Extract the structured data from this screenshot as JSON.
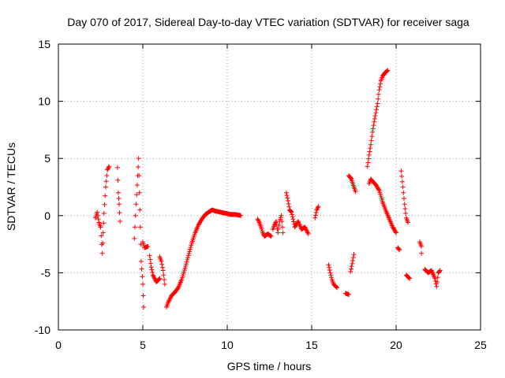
{
  "chart_data": {
    "type": "scatter",
    "title": "Day 070 of 2017, Sidereal Day-to-day VTEC variation (SDTVAR) for receiver saga",
    "xlabel": "GPS time / hours",
    "ylabel": "SDTVAR / TECUs",
    "xlim": [
      0,
      25
    ],
    "ylim": [
      -10,
      15
    ],
    "xticks": [
      0,
      5,
      10,
      15,
      20,
      25
    ],
    "xtick_labels": [
      "0",
      "5",
      "10",
      "15",
      "20",
      "25"
    ],
    "yticks": [
      -10,
      -5,
      0,
      5,
      10,
      15
    ],
    "ytick_labels": [
      "-10",
      "-5",
      "0",
      "5",
      "10",
      "15"
    ],
    "grid": true,
    "marker": "+",
    "marker_color": "#ff0000",
    "segments": [
      {
        "points": [
          [
            2.2,
            -0.2
          ],
          [
            2.3,
            0.3
          ],
          [
            2.4,
            -0.6
          ],
          [
            2.5,
            -1.0
          ]
        ]
      },
      {
        "points": [
          [
            2.5,
            -1.0
          ],
          [
            2.6,
            -3.3
          ],
          [
            2.65,
            -1.5
          ],
          [
            2.7,
            0.2
          ],
          [
            2.8,
            2.5
          ],
          [
            2.9,
            4.0
          ],
          [
            3.0,
            4.3
          ]
        ]
      },
      {
        "points": [
          [
            3.5,
            4.2
          ],
          [
            3.55,
            2.0
          ],
          [
            3.6,
            1.0
          ],
          [
            3.65,
            -0.5
          ]
        ]
      },
      {
        "points": [
          [
            4.5,
            -2.0
          ],
          [
            4.6,
            1.0
          ],
          [
            4.7,
            3.5
          ],
          [
            4.75,
            5.0
          ],
          [
            4.8,
            2.0
          ],
          [
            4.85,
            -1.0
          ],
          [
            4.9,
            -4.0
          ],
          [
            5.0,
            -6.0
          ],
          [
            5.05,
            -8.0
          ]
        ]
      },
      {
        "points": [
          [
            5.0,
            -2.3
          ],
          [
            5.1,
            -2.8
          ],
          [
            5.3,
            -2.7
          ]
        ]
      },
      {
        "points": [
          [
            5.4,
            -3.5
          ],
          [
            5.5,
            -4.5
          ],
          [
            5.6,
            -5.2
          ],
          [
            5.8,
            -5.8
          ],
          [
            6.0,
            -5.5
          ]
        ]
      },
      {
        "points": [
          [
            6.0,
            -3.6
          ],
          [
            6.1,
            -4.0
          ],
          [
            6.2,
            -4.8
          ],
          [
            6.3,
            -6.0
          ]
        ]
      },
      {
        "points": [
          [
            6.4,
            -8.0
          ],
          [
            6.5,
            -7.6
          ],
          [
            6.7,
            -7.0
          ],
          [
            6.9,
            -6.7
          ],
          [
            7.1,
            -6.3
          ],
          [
            7.3,
            -5.6
          ],
          [
            7.5,
            -4.6
          ],
          [
            7.7,
            -3.5
          ],
          [
            7.9,
            -2.4
          ],
          [
            8.1,
            -1.5
          ],
          [
            8.3,
            -0.8
          ],
          [
            8.5,
            -0.3
          ],
          [
            8.7,
            0.1
          ],
          [
            8.9,
            0.3
          ],
          [
            9.1,
            0.5
          ],
          [
            9.3,
            0.4
          ],
          [
            9.6,
            0.3
          ],
          [
            9.9,
            0.2
          ],
          [
            10.2,
            0.1
          ],
          [
            10.5,
            0.1
          ],
          [
            10.8,
            0.0
          ]
        ]
      },
      {
        "points": [
          [
            11.8,
            -0.3
          ],
          [
            11.9,
            -0.6
          ],
          [
            12.0,
            -1.0
          ],
          [
            12.1,
            -1.5
          ],
          [
            12.2,
            -1.8
          ],
          [
            12.4,
            -1.6
          ],
          [
            12.6,
            -1.8
          ]
        ]
      },
      {
        "points": [
          [
            12.7,
            -1.2
          ],
          [
            12.8,
            -0.8
          ],
          [
            12.9,
            -0.5
          ],
          [
            13.0,
            -1.5
          ],
          [
            13.1,
            -0.5
          ],
          [
            13.2,
            0.0
          ],
          [
            13.3,
            -1.5
          ]
        ]
      },
      {
        "points": [
          [
            13.5,
            2.0
          ],
          [
            13.6,
            1.3
          ],
          [
            13.7,
            0.5
          ],
          [
            13.8,
            0.3
          ],
          [
            13.9,
            -0.3
          ],
          [
            14.0,
            -1.0
          ],
          [
            14.2,
            -0.5
          ],
          [
            14.4,
            -1.2
          ],
          [
            14.6,
            -1.0
          ],
          [
            14.8,
            -1.6
          ]
        ]
      },
      {
        "points": [
          [
            15.2,
            -0.2
          ],
          [
            15.3,
            0.5
          ],
          [
            15.4,
            0.8
          ]
        ]
      },
      {
        "points": [
          [
            16.0,
            -4.3
          ],
          [
            16.1,
            -5.0
          ],
          [
            16.2,
            -5.6
          ],
          [
            16.3,
            -6.0
          ],
          [
            16.5,
            -6.3
          ]
        ]
      },
      {
        "points": [
          [
            17.0,
            -6.8
          ],
          [
            17.2,
            -6.9
          ]
        ]
      },
      {
        "points": [
          [
            17.3,
            -4.9
          ],
          [
            17.4,
            -4.2
          ],
          [
            17.5,
            -3.4
          ]
        ]
      },
      {
        "points": [
          [
            17.2,
            3.5
          ],
          [
            17.35,
            3.2
          ],
          [
            17.5,
            2.5
          ],
          [
            17.6,
            2.1
          ]
        ]
      },
      {
        "points": [
          [
            18.3,
            4.3
          ],
          [
            18.4,
            5.3
          ],
          [
            18.5,
            6.2
          ],
          [
            18.6,
            7.3
          ],
          [
            18.7,
            8.2
          ],
          [
            18.8,
            9.0
          ],
          [
            18.9,
            9.8
          ],
          [
            19.0,
            11.0
          ],
          [
            19.1,
            11.8
          ],
          [
            19.2,
            12.2
          ],
          [
            19.35,
            12.5
          ],
          [
            19.5,
            12.7
          ]
        ]
      },
      {
        "points": [
          [
            18.4,
            2.8
          ],
          [
            18.5,
            3.2
          ],
          [
            18.6,
            3.0
          ],
          [
            18.8,
            2.7
          ],
          [
            19.0,
            2.2
          ],
          [
            19.2,
            1.2
          ],
          [
            19.4,
            0.4
          ],
          [
            19.6,
            -0.3
          ],
          [
            19.8,
            -1.0
          ],
          [
            20.0,
            -1.5
          ]
        ]
      },
      {
        "points": [
          [
            20.1,
            -2.8
          ],
          [
            20.2,
            -3.0
          ]
        ]
      },
      {
        "points": [
          [
            20.3,
            3.9
          ],
          [
            20.4,
            2.5
          ],
          [
            20.5,
            1.0
          ],
          [
            20.6,
            -0.2
          ],
          [
            20.7,
            -0.6
          ]
        ]
      },
      {
        "points": [
          [
            20.6,
            -5.2
          ],
          [
            20.8,
            -5.5
          ]
        ]
      },
      {
        "points": [
          [
            21.4,
            -2.3
          ],
          [
            21.5,
            -2.7
          ]
        ]
      },
      {
        "points": [
          [
            21.5,
            -3.3
          ]
        ]
      },
      {
        "points": [
          [
            21.7,
            -4.7
          ],
          [
            21.9,
            -5.0
          ],
          [
            22.1,
            -4.8
          ],
          [
            22.3,
            -5.5
          ],
          [
            22.4,
            -6.2
          ],
          [
            22.5,
            -5.0
          ],
          [
            22.6,
            -4.8
          ]
        ]
      }
    ]
  }
}
